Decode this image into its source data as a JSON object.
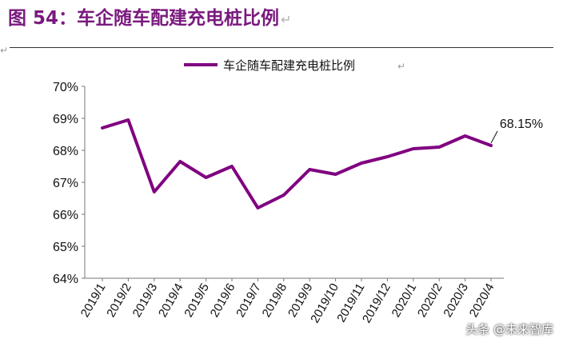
{
  "figure": {
    "title": "图 54：车企随车配建充电桩比例",
    "para_mark": "↵"
  },
  "watermark": "头条 @未来智库",
  "chart_data": {
    "type": "line",
    "title": "",
    "xlabel": "",
    "ylabel": "",
    "legend": {
      "position": "top-center",
      "entries": [
        "车企随车配建充电桩比例"
      ]
    },
    "categories": [
      "2019/1",
      "2019/2",
      "2019/3",
      "2019/4",
      "2019/5",
      "2019/6",
      "2019/7",
      "2019/8",
      "2019/9",
      "2019/10",
      "2019/11",
      "2019/12",
      "2020/1",
      "2020/2",
      "2020/3",
      "2020/4"
    ],
    "series": [
      {
        "name": "车企随车配建充电桩比例",
        "color": "#800080",
        "values": [
          68.7,
          68.95,
          66.7,
          67.65,
          67.15,
          67.5,
          66.2,
          66.6,
          67.4,
          67.25,
          67.6,
          67.8,
          68.05,
          68.1,
          68.45,
          68.15
        ]
      }
    ],
    "ylim": [
      64,
      70
    ],
    "yticks": [
      64,
      65,
      66,
      67,
      68,
      69,
      70
    ],
    "ytick_labels": [
      "64%",
      "65%",
      "66%",
      "67%",
      "68%",
      "69%",
      "70%"
    ],
    "annotations": [
      {
        "category": "2020/4",
        "text": "68.15%"
      }
    ],
    "grid": false
  }
}
